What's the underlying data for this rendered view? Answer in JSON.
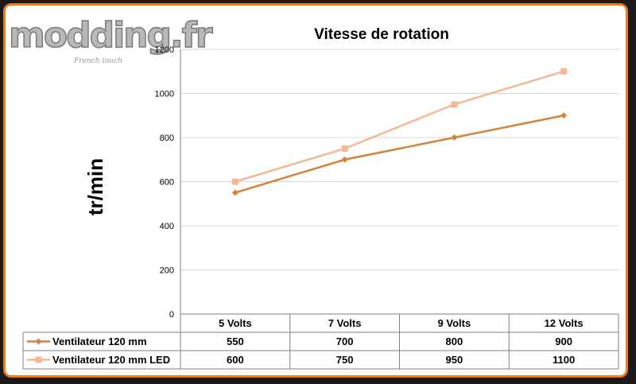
{
  "logo": {
    "text": "modding.fr",
    "tagline": "French touch"
  },
  "chart_data": {
    "type": "line",
    "title": "Vitesse de rotation",
    "xlabel": "",
    "ylabel": "tr/min",
    "categories": [
      "5 Volts",
      "7 Volts",
      "9 Volts",
      "12 Volts"
    ],
    "ylim": [
      0,
      1200
    ],
    "yticks": [
      0,
      200,
      400,
      600,
      800,
      1000,
      1200
    ],
    "grid": true,
    "legend": "data-table",
    "series": [
      {
        "name": "Ventilateur 120 mm",
        "values": [
          550,
          700,
          800,
          900
        ],
        "color": "#d4843c",
        "marker": "diamond"
      },
      {
        "name": "Ventilateur 120 mm LED",
        "values": [
          600,
          750,
          950,
          1100
        ],
        "color": "#f5b896",
        "marker": "square"
      }
    ]
  },
  "colors": {
    "frame": "#f07a1a",
    "grid": "#d9d9d9",
    "axis": "#808080"
  }
}
